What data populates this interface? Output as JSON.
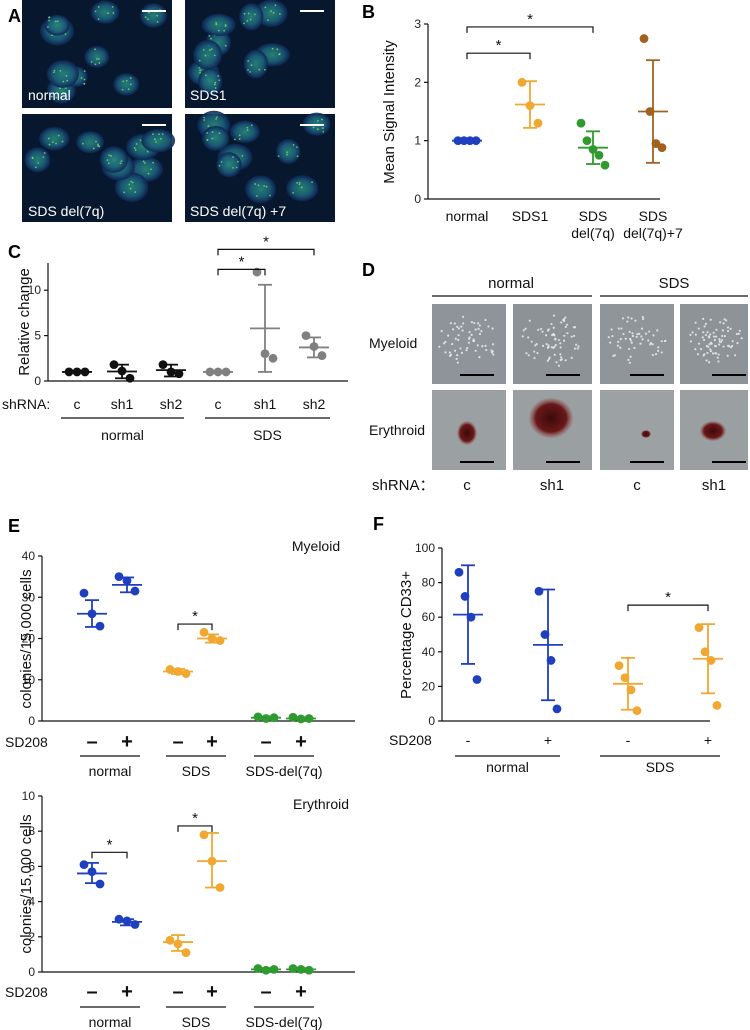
{
  "panel_letters": [
    "A",
    "B",
    "C",
    "D",
    "E",
    "F"
  ],
  "colors": {
    "blue": "#1f3fbf",
    "orange": "#f0a830",
    "green": "#2f9a2f",
    "brown": "#a0621e",
    "black": "#111111",
    "gray": "#808080"
  },
  "panel_a": {
    "images": [
      "normal",
      "SDS1",
      "SDS del(7q)",
      "SDS del(7q) +7"
    ]
  },
  "panel_d": {
    "headers": [
      "normal",
      "SDS"
    ],
    "row_labels": [
      "Myeloid",
      "Erythroid"
    ],
    "shrna_label": "shRNA：",
    "shrna_values": [
      "c",
      "sh1",
      "c",
      "sh1"
    ]
  },
  "chart_data": [
    {
      "id": "B",
      "type": "scatter",
      "ylabel": "Mean Signal Intensity",
      "ylim": [
        0,
        3
      ],
      "yticks": [
        "0",
        "1",
        "2",
        "3"
      ],
      "categories": [
        "normal",
        "SDS1",
        "SDS\ndel(7q)",
        "SDS\ndel(7q)+7"
      ],
      "groups": [
        {
          "points": [
            1.0,
            1.0,
            1.0,
            1.0
          ],
          "mean": 1.0,
          "sd": [
            1.0,
            1.0
          ],
          "color": "blue"
        },
        {
          "points": [
            2.0,
            1.6,
            1.3
          ],
          "mean": 1.62,
          "sd": [
            1.22,
            2.02
          ],
          "color": "orange"
        },
        {
          "points": [
            1.3,
            1.0,
            0.85,
            0.75,
            0.58
          ],
          "mean": 0.88,
          "sd": [
            0.6,
            1.16
          ],
          "color": "green"
        },
        {
          "points": [
            2.75,
            1.5,
            0.95,
            0.88
          ],
          "mean": 1.5,
          "sd": [
            0.62,
            2.38
          ],
          "color": "brown"
        }
      ],
      "significance": [
        {
          "from": 0,
          "to": 1,
          "label": "*",
          "level": 2.5
        },
        {
          "from": 0,
          "to": 2,
          "label": "*",
          "level": 2.95
        }
      ]
    },
    {
      "id": "C",
      "type": "scatter",
      "ylabel": "Relative change",
      "ylim": [
        0,
        13
      ],
      "yticks": [
        "0",
        "5",
        "10"
      ],
      "row_label": "shRNA:",
      "categories": [
        "c",
        "sh1",
        "sh2",
        "c",
        "sh1",
        "sh2"
      ],
      "group_labels": [
        "normal",
        "SDS"
      ],
      "groups": [
        {
          "points": [
            1.0,
            1.0,
            1.0
          ],
          "mean": 1.0,
          "sd": [
            1.0,
            1.0
          ],
          "color": "black"
        },
        {
          "points": [
            1.8,
            1.1,
            0.3
          ],
          "mean": 1.05,
          "sd": [
            0.3,
            1.8
          ],
          "color": "black"
        },
        {
          "points": [
            1.8,
            1.0,
            0.8
          ],
          "mean": 1.2,
          "sd": [
            0.5,
            1.8
          ],
          "color": "black"
        },
        {
          "points": [
            1.0,
            1.0,
            1.0
          ],
          "mean": 1.0,
          "sd": [
            1.0,
            1.0
          ],
          "color": "gray"
        },
        {
          "points": [
            12.0,
            3.0,
            2.5
          ],
          "mean": 5.8,
          "sd": [
            1.0,
            10.6
          ],
          "color": "gray"
        },
        {
          "points": [
            5.0,
            3.8,
            2.8
          ],
          "mean": 3.7,
          "sd": [
            2.6,
            4.8
          ],
          "color": "gray"
        }
      ],
      "significance": [
        {
          "from": 3,
          "to": 4,
          "label": "*",
          "level": 12.3
        },
        {
          "from": 3,
          "to": 5,
          "label": "*",
          "level": 14.5
        }
      ]
    },
    {
      "id": "E-top",
      "type": "scatter",
      "title": "Myeloid",
      "ylabel": "colonies/15,000 cells",
      "ylim": [
        0,
        40
      ],
      "yticks": [
        "0",
        "10",
        "20",
        "30",
        "40"
      ],
      "row_label": "SD208",
      "categories": [
        "–",
        "+",
        "–",
        "+",
        "–",
        "+"
      ],
      "group_labels": [
        "normal",
        "SDS",
        "SDS-del(7q)"
      ],
      "groups": [
        {
          "points": [
            31,
            26,
            23
          ],
          "mean": 26,
          "sd": [
            22.8,
            29.3
          ],
          "color": "blue"
        },
        {
          "points": [
            35,
            34,
            31.5
          ],
          "mean": 33,
          "sd": [
            31.2,
            34.8
          ],
          "color": "blue"
        },
        {
          "points": [
            12.5,
            12,
            11.5
          ],
          "mean": 12,
          "sd": [
            11.4,
            12.6
          ],
          "color": "orange"
        },
        {
          "points": [
            21.5,
            20,
            19.5
          ],
          "mean": 20,
          "sd": [
            19,
            21
          ],
          "color": "orange"
        },
        {
          "points": [
            1,
            0.6,
            0.8
          ],
          "mean": 0.8,
          "sd": [
            0.5,
            1.1
          ],
          "color": "green"
        },
        {
          "points": [
            0.9,
            0.5,
            0.6
          ],
          "mean": 0.6,
          "sd": [
            0.4,
            0.9
          ],
          "color": "green"
        }
      ],
      "significance": [
        {
          "from": 2,
          "to": 3,
          "label": "*",
          "level": 23.5
        }
      ]
    },
    {
      "id": "E-bottom",
      "type": "scatter",
      "title": "Erythroid",
      "ylabel": "colonies/15,000 cells",
      "ylim": [
        0,
        10
      ],
      "yticks": [
        "0",
        "2",
        "4",
        "6",
        "8",
        "10"
      ],
      "row_label": "SD208",
      "categories": [
        "–",
        "+",
        "–",
        "+",
        "–",
        "+"
      ],
      "group_labels": [
        "normal",
        "SDS",
        "SDS-del(7q)"
      ],
      "groups": [
        {
          "points": [
            6.1,
            5.7,
            5.0
          ],
          "mean": 5.6,
          "sd": [
            5.05,
            6.2
          ],
          "color": "blue"
        },
        {
          "points": [
            3.0,
            2.9,
            2.7
          ],
          "mean": 2.85,
          "sd": [
            2.65,
            3.0
          ],
          "color": "blue"
        },
        {
          "points": [
            1.8,
            1.6,
            1.1
          ],
          "mean": 1.7,
          "sd": [
            1.2,
            2.1
          ],
          "color": "orange"
        },
        {
          "points": [
            7.8,
            6.3,
            4.8
          ],
          "mean": 6.3,
          "sd": [
            4.8,
            7.9
          ],
          "color": "orange"
        },
        {
          "points": [
            0.2,
            0.1,
            0.15
          ],
          "mean": 0.15,
          "sd": [
            0.08,
            0.22
          ],
          "color": "green"
        },
        {
          "points": [
            0.2,
            0.15,
            0.1
          ],
          "mean": 0.15,
          "sd": [
            0.08,
            0.22
          ],
          "color": "green"
        }
      ],
      "significance": [
        {
          "from": 0,
          "to": 1,
          "label": "*",
          "level": 6.8
        },
        {
          "from": 2,
          "to": 3,
          "label": "*",
          "level": 8.3
        }
      ]
    },
    {
      "id": "F",
      "type": "scatter",
      "ylabel": "Percentage CD33+",
      "ylim": [
        0,
        100
      ],
      "yticks": [
        "0",
        "20",
        "40",
        "60",
        "80",
        "100"
      ],
      "row_label": "SD208",
      "categories": [
        "-",
        "+",
        "-",
        "+"
      ],
      "group_labels": [
        "normal",
        "SDS"
      ],
      "groups": [
        {
          "points": [
            86,
            72,
            60,
            24
          ],
          "mean": 61.5,
          "sd": [
            33,
            90
          ],
          "color": "blue"
        },
        {
          "points": [
            75,
            50,
            35,
            7
          ],
          "mean": 44,
          "sd": [
            12,
            76
          ],
          "color": "blue"
        },
        {
          "points": [
            32,
            25,
            18,
            6
          ],
          "mean": 21.5,
          "sd": [
            6.5,
            36.5
          ],
          "color": "orange"
        },
        {
          "points": [
            54,
            40,
            35,
            9
          ],
          "mean": 36,
          "sd": [
            16,
            56
          ],
          "color": "orange"
        }
      ],
      "significance": [
        {
          "from": 2,
          "to": 3,
          "label": "*",
          "level": 67
        }
      ]
    }
  ]
}
